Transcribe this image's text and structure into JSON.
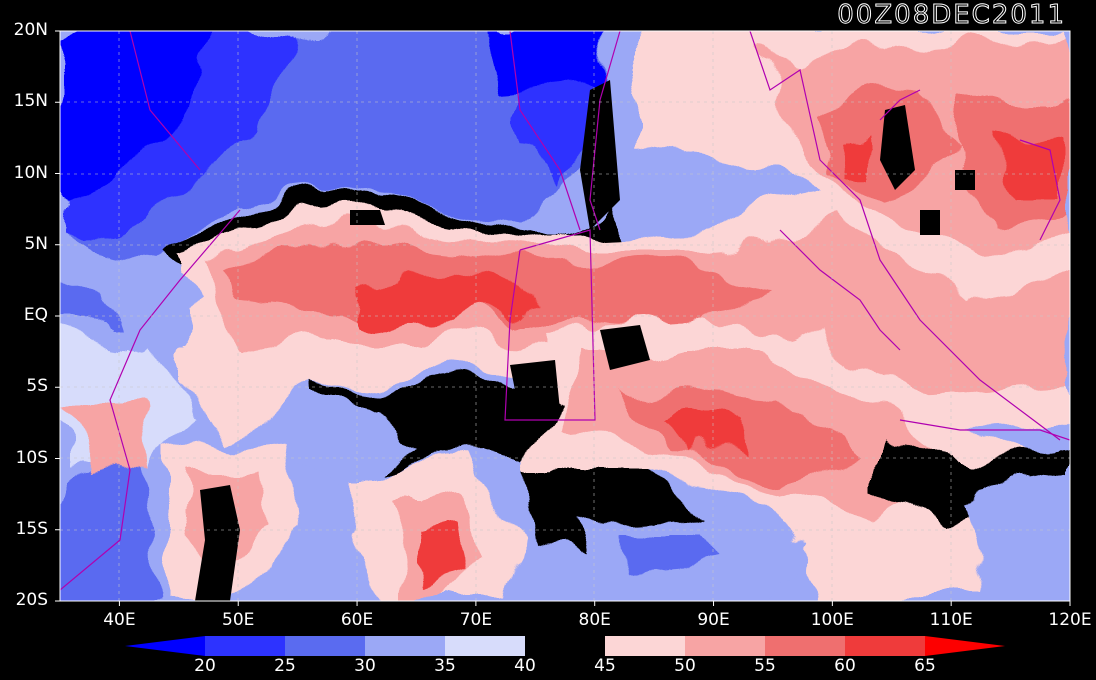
{
  "title": "00Z08DEC2011",
  "map": {
    "lat_labels": [
      "20N",
      "15N",
      "10N",
      "5N",
      "EQ",
      "5S",
      "10S",
      "15S",
      "20S"
    ],
    "lon_labels": [
      "40E",
      "50E",
      "60E",
      "70E",
      "80E",
      "90E",
      "100E",
      "110E",
      "120E"
    ],
    "lon_range": [
      35,
      120
    ],
    "lat_range": [
      -20,
      20
    ]
  },
  "colorbar": {
    "labels": [
      "20",
      "25",
      "30",
      "35",
      "40",
      "45",
      "50",
      "55",
      "60",
      "65"
    ],
    "colors": [
      "#0000ff",
      "#2d33ff",
      "#5a6bf0",
      "#9ba8f6",
      "#d7dcfb",
      "#000000",
      "#fcd6d6",
      "#f7a4a4",
      "#ef6f6f",
      "#ef3b3b",
      "#fd0000"
    ]
  },
  "colors": {
    "background": "#000000",
    "coastline": "#b000b0",
    "contour": "#ffffff"
  }
}
